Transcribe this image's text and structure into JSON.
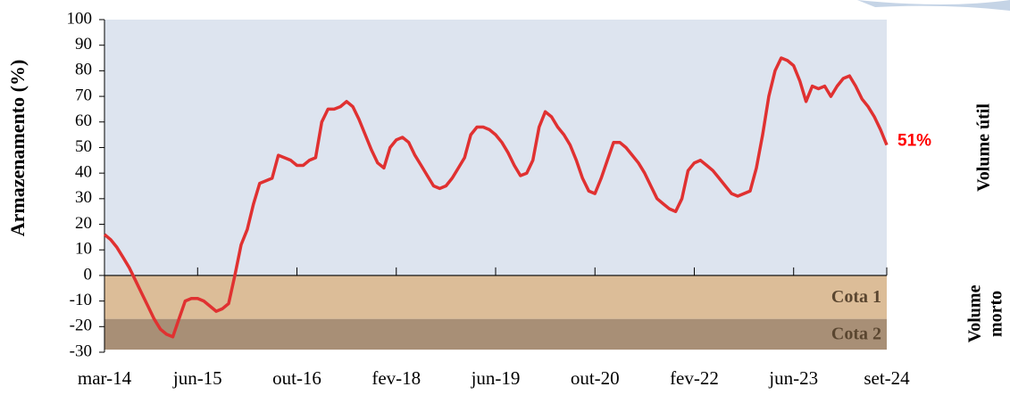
{
  "chart_data": {
    "type": "line",
    "y_label": "Armazenamento (%)",
    "categories": [
      "mar-14",
      null,
      null,
      null,
      null,
      null,
      null,
      null,
      null,
      null,
      null,
      null,
      null,
      null,
      null,
      "jun-15",
      null,
      null,
      null,
      null,
      null,
      null,
      null,
      null,
      null,
      null,
      null,
      null,
      null,
      null,
      null,
      "out-16",
      null,
      null,
      null,
      null,
      null,
      null,
      null,
      null,
      null,
      null,
      null,
      null,
      null,
      null,
      null,
      "fev-18",
      null,
      null,
      null,
      null,
      null,
      null,
      null,
      null,
      null,
      null,
      null,
      null,
      null,
      null,
      null,
      "jun-19",
      null,
      null,
      null,
      null,
      null,
      null,
      null,
      null,
      null,
      null,
      null,
      null,
      null,
      null,
      null,
      "out-20",
      null,
      null,
      null,
      null,
      null,
      null,
      null,
      null,
      null,
      null,
      null,
      null,
      null,
      null,
      null,
      "fev-22",
      null,
      null,
      null,
      null,
      null,
      null,
      null,
      null,
      null,
      null,
      null,
      null,
      null,
      null,
      null,
      "jun-23",
      null,
      null,
      null,
      null,
      null,
      null,
      null,
      null,
      null,
      null,
      null,
      null,
      null,
      null,
      "set-24"
    ],
    "values": [
      16,
      14,
      11,
      7,
      3,
      -2,
      -7,
      -12,
      -17,
      -21,
      -23,
      -24,
      -17,
      -10,
      -9,
      -9,
      -10,
      -12,
      -14,
      -13,
      -11,
      0,
      12,
      18,
      28,
      36,
      37,
      38,
      47,
      46,
      45,
      43,
      43,
      45,
      46,
      60,
      65,
      65,
      66,
      68,
      66,
      61,
      55,
      49,
      44,
      42,
      50,
      53,
      54,
      52,
      47,
      43,
      39,
      35,
      34,
      35,
      38,
      42,
      46,
      55,
      58,
      58,
      57,
      55,
      52,
      48,
      43,
      39,
      40,
      45,
      58,
      64,
      62,
      58,
      55,
      51,
      45,
      38,
      33,
      32,
      38,
      45,
      52,
      52,
      50,
      47,
      44,
      40,
      35,
      30,
      28,
      26,
      25,
      30,
      41,
      44,
      45,
      43,
      41,
      38,
      35,
      32,
      31,
      32,
      33,
      42,
      55,
      70,
      80,
      85,
      84,
      82,
      76,
      68,
      74,
      73,
      74,
      70,
      74,
      77,
      78,
      74,
      69,
      66,
      62,
      57,
      51
    ],
    "color": "#e03131",
    "end_label": {
      "text": "51%",
      "color": "#ff0000"
    },
    "ylim": [
      -30,
      100
    ],
    "yticks": [
      -30,
      -20,
      -10,
      0,
      10,
      20,
      30,
      40,
      50,
      60,
      70,
      80,
      90,
      100
    ],
    "regions": [
      {
        "from": 0,
        "to": 100,
        "color": "#dde4ef",
        "label": "Volume útil"
      },
      {
        "from": -30,
        "to": 0,
        "color": "#ffffff",
        "label": [
          "Volume",
          "morto"
        ]
      }
    ],
    "bands": [
      {
        "label": "Cota 1",
        "from": -17,
        "to": 0,
        "color": "#dcbd98"
      },
      {
        "label": "Cota 2",
        "from": -29,
        "to": -17,
        "color": "#a88f76"
      }
    ]
  }
}
